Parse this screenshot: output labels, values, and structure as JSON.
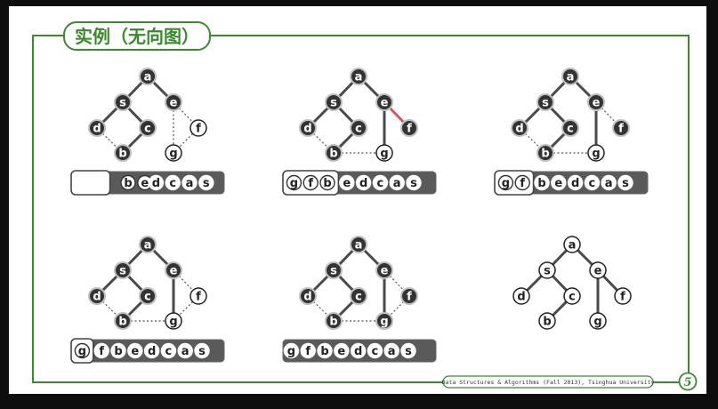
{
  "title": "实例（无向图）",
  "footer": "Data Structures & Algorithms (Fall 2013), Tsinghua University",
  "page_number": "5",
  "colors": {
    "slide_bg": "#ffffff",
    "accent_green": "#3b8a2e",
    "node_dark": "#333333",
    "node_light": "#ffffff",
    "queue_dark": "#5a5a5a"
  },
  "graph": {
    "nodes": [
      "a",
      "s",
      "e",
      "d",
      "c",
      "f",
      "b",
      "g"
    ],
    "edges": [
      [
        "a",
        "s"
      ],
      [
        "a",
        "e"
      ],
      [
        "s",
        "d"
      ],
      [
        "s",
        "c"
      ],
      [
        "e",
        "f"
      ],
      [
        "e",
        "g"
      ],
      [
        "c",
        "b"
      ],
      [
        "d",
        "b"
      ],
      [
        "f",
        "g"
      ],
      [
        "b",
        "g"
      ]
    ]
  },
  "steps": [
    {
      "visited": [
        "a",
        "s",
        "e",
        "d",
        "c",
        "b"
      ],
      "discovered": [
        "f",
        "g"
      ],
      "tree_edges": [
        [
          "a",
          "s"
        ],
        [
          "a",
          "e"
        ],
        [
          "s",
          "d"
        ],
        [
          "s",
          "c"
        ],
        [
          "c",
          "b"
        ]
      ],
      "nontree_edges": [
        [
          "e",
          "f"
        ],
        [
          "e",
          "g"
        ],
        [
          "d",
          "b"
        ],
        [
          "f",
          "g"
        ]
      ],
      "highlight_edges": [],
      "queue_left": [
        "b",
        "e"
      ],
      "queue_right": [
        "d",
        "c",
        "a",
        "s"
      ]
    },
    {
      "visited": [
        "a",
        "s",
        "e",
        "d",
        "c",
        "b",
        "f"
      ],
      "discovered": [
        "g"
      ],
      "tree_edges": [
        [
          "a",
          "s"
        ],
        [
          "a",
          "e"
        ],
        [
          "s",
          "d"
        ],
        [
          "s",
          "c"
        ],
        [
          "c",
          "b"
        ],
        [
          "e",
          "g"
        ],
        [
          "e",
          "f"
        ]
      ],
      "nontree_edges": [
        [
          "d",
          "b"
        ],
        [
          "b",
          "g"
        ]
      ],
      "highlight_edges": [
        [
          "e",
          "f"
        ]
      ],
      "queue_left": [
        "g",
        "f",
        "b"
      ],
      "queue_right": [
        "e",
        "d",
        "c",
        "a",
        "s"
      ]
    },
    {
      "visited": [
        "a",
        "s",
        "e",
        "d",
        "c",
        "b",
        "f"
      ],
      "discovered": [
        "g"
      ],
      "tree_edges": [
        [
          "a",
          "s"
        ],
        [
          "a",
          "e"
        ],
        [
          "s",
          "d"
        ],
        [
          "s",
          "c"
        ],
        [
          "c",
          "b"
        ],
        [
          "e",
          "g"
        ]
      ],
      "nontree_edges": [
        [
          "d",
          "b"
        ],
        [
          "b",
          "g"
        ],
        [
          "e",
          "f"
        ]
      ],
      "highlight_edges": [],
      "queue_left": [
        "g",
        "f"
      ],
      "queue_right": [
        "b",
        "e",
        "d",
        "c",
        "a",
        "s"
      ]
    },
    {
      "visited": [
        "a",
        "s",
        "e",
        "d",
        "c",
        "b"
      ],
      "discovered": [
        "f",
        "g"
      ],
      "tree_edges": [
        [
          "a",
          "s"
        ],
        [
          "a",
          "e"
        ],
        [
          "s",
          "d"
        ],
        [
          "s",
          "c"
        ],
        [
          "c",
          "b"
        ],
        [
          "e",
          "g"
        ]
      ],
      "nontree_edges": [
        [
          "e",
          "f"
        ],
        [
          "d",
          "b"
        ],
        [
          "b",
          "g"
        ],
        [
          "f",
          "g"
        ]
      ],
      "highlight_edges": [],
      "queue_left": [
        "g"
      ],
      "queue_right": [
        "f",
        "b",
        "e",
        "d",
        "c",
        "a",
        "s"
      ]
    },
    {
      "visited": [
        "a",
        "s",
        "e",
        "d",
        "c",
        "b",
        "f",
        "g"
      ],
      "discovered": [],
      "tree_edges": [
        [
          "a",
          "s"
        ],
        [
          "a",
          "e"
        ],
        [
          "s",
          "d"
        ],
        [
          "s",
          "c"
        ],
        [
          "c",
          "b"
        ],
        [
          "e",
          "g"
        ]
      ],
      "nontree_edges": [
        [
          "e",
          "f"
        ],
        [
          "d",
          "b"
        ],
        [
          "b",
          "g"
        ],
        [
          "f",
          "g"
        ]
      ],
      "highlight_edges": [],
      "queue_left": [],
      "queue_right": [
        "g",
        "f",
        "b",
        "e",
        "d",
        "c",
        "a",
        "s"
      ]
    },
    {
      "visited": [],
      "discovered": [
        "a",
        "s",
        "e",
        "d",
        "c",
        "f",
        "b",
        "g"
      ],
      "tree_edges": [
        [
          "a",
          "s"
        ],
        [
          "a",
          "e"
        ],
        [
          "s",
          "d"
        ],
        [
          "s",
          "c"
        ],
        [
          "c",
          "b"
        ],
        [
          "e",
          "g"
        ],
        [
          "e",
          "f"
        ]
      ],
      "nontree_edges": [],
      "highlight_edges": [],
      "queue_left": [],
      "queue_right": []
    }
  ]
}
